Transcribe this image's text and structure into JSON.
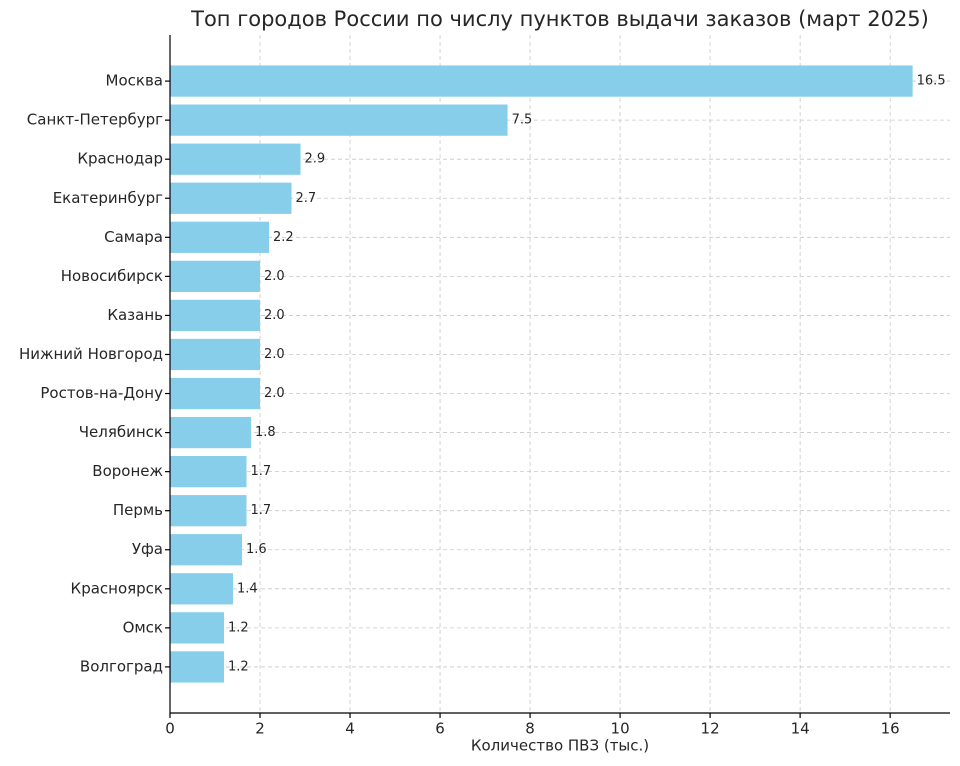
{
  "chart_data": {
    "type": "barh",
    "title": "Топ городов России по числу пунктов выдачи заказов (март 2025)",
    "x_label": "Количество ПВЗ (тыс.)",
    "categories": [
      "Москва",
      "Санкт-Петербург",
      "Краснодар",
      "Екатеринбург",
      "Самара",
      "Новосибирск",
      "Казань",
      "Нижний Новгород",
      "Ростов-на-Дону",
      "Челябинск",
      "Воронеж",
      "Пермь",
      "Уфа",
      "Красноярск",
      "Омск",
      "Волгоград"
    ],
    "values": [
      16.5,
      7.5,
      2.9,
      2.7,
      2.2,
      2.0,
      2.0,
      2.0,
      2.0,
      1.8,
      1.7,
      1.7,
      1.6,
      1.4,
      1.2,
      1.2
    ],
    "value_labels": [
      "16.5",
      "7.5",
      "2.9",
      "2.7",
      "2.2",
      "2.0",
      "2.0",
      "2.0",
      "2.0",
      "1.8",
      "1.7",
      "1.7",
      "1.6",
      "1.4",
      "1.2",
      "1.2"
    ],
    "color": "#87ceeb",
    "xlim": [
      0,
      17.33
    ],
    "xticks": [
      0,
      2,
      4,
      6,
      8,
      10,
      12,
      14,
      16
    ],
    "grid": true
  }
}
